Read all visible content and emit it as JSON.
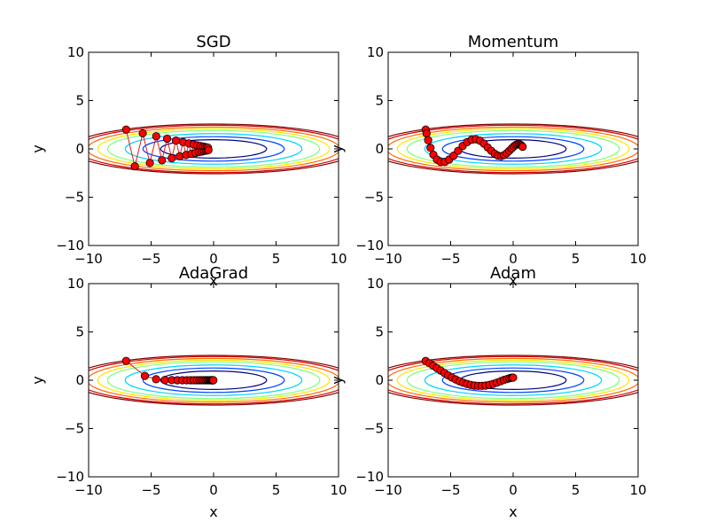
{
  "colors": {
    "path_line": "#e41a1c",
    "marker_fill": "#ff0000",
    "marker_edge": "#000000",
    "contour_levels": [
      "#00007f",
      "#0045ff",
      "#00d4ff",
      "#7fff7f",
      "#ffe600",
      "#ff6a00",
      "#d40000",
      "#7f0000"
    ]
  },
  "chart_data": [
    {
      "type": "line",
      "title": "SGD",
      "xlabel": "x",
      "ylabel": "y",
      "xlim": [
        -10,
        10
      ],
      "ylim": [
        -10,
        10
      ],
      "xticks": [
        "−10",
        "−5",
        "0",
        "5",
        "10"
      ],
      "yticks": [
        "−10",
        "−5",
        "0",
        "5",
        "10"
      ],
      "grid": false,
      "contour": {
        "function": "x^2/20 + y^2",
        "center": [
          0,
          0
        ]
      },
      "series": [
        {
          "x": [
            -7.0,
            -6.3,
            -5.67,
            -5.1,
            -4.59,
            -4.13,
            -3.72,
            -3.35,
            -3.01,
            -2.71,
            -2.44,
            -2.2,
            -1.98,
            -1.78,
            -1.6,
            -1.44,
            -1.3,
            -1.17,
            -1.05,
            -0.94,
            -0.85,
            -0.77,
            -0.69,
            -0.62,
            -0.56,
            -0.5,
            -0.45,
            -0.41
          ],
          "y": [
            2.0,
            -1.8,
            1.62,
            -1.46,
            1.31,
            -1.18,
            1.06,
            -0.96,
            0.86,
            -0.77,
            0.7,
            -0.63,
            0.56,
            -0.51,
            0.46,
            -0.41,
            0.37,
            -0.33,
            0.3,
            -0.27,
            0.24,
            -0.22,
            0.2,
            -0.18,
            0.16,
            -0.14,
            0.13,
            -0.12
          ]
        }
      ]
    },
    {
      "type": "line",
      "title": "Momentum",
      "xlabel": "x",
      "ylabel": "y",
      "xlim": [
        -10,
        10
      ],
      "ylim": [
        -10,
        10
      ],
      "xticks": [
        "−10",
        "−5",
        "0",
        "5",
        "10"
      ],
      "yticks": [
        "−10",
        "−5",
        "0",
        "5",
        "10"
      ],
      "grid": false,
      "contour": {
        "function": "x^2/20 + y^2",
        "center": [
          0,
          0
        ]
      },
      "series": [
        {
          "x": [
            -7.0,
            -6.93,
            -6.8,
            -6.61,
            -6.38,
            -6.1,
            -5.8,
            -5.47,
            -5.12,
            -4.76,
            -4.4,
            -4.04,
            -3.68,
            -3.33,
            -2.99,
            -2.66,
            -2.34,
            -2.04,
            -1.75,
            -1.47,
            -1.21,
            -0.96,
            -0.73,
            -0.51,
            -0.31,
            -0.12,
            0.05,
            0.2,
            0.34,
            0.46,
            0.56,
            0.64,
            0.71,
            0.76
          ],
          "y": [
            2.0,
            1.6,
            0.9,
            0.1,
            -0.6,
            -1.1,
            -1.35,
            -1.35,
            -1.1,
            -0.7,
            -0.2,
            0.3,
            0.7,
            0.95,
            1.0,
            0.85,
            0.55,
            0.15,
            -0.2,
            -0.5,
            -0.7,
            -0.75,
            -0.65,
            -0.45,
            -0.2,
            0.05,
            0.25,
            0.4,
            0.48,
            0.5,
            0.45,
            0.38,
            0.3,
            0.22
          ]
        }
      ]
    },
    {
      "type": "line",
      "title": "AdaGrad",
      "xlabel": "x",
      "ylabel": "y",
      "xlim": [
        -10,
        10
      ],
      "ylim": [
        -10,
        10
      ],
      "xticks": [
        "−10",
        "−5",
        "0",
        "5",
        "10"
      ],
      "yticks": [
        "−10",
        "−5",
        "0",
        "5",
        "10"
      ],
      "grid": false,
      "contour": {
        "function": "x^2/20 + y^2",
        "center": [
          0,
          0
        ]
      },
      "series": [
        {
          "x": [
            -7.0,
            -5.5,
            -4.6,
            -3.9,
            -3.35,
            -2.9,
            -2.5,
            -2.15,
            -1.85,
            -1.58,
            -1.34,
            -1.13,
            -0.95,
            -0.79,
            -0.65,
            -0.53,
            -0.43,
            -0.34,
            -0.27,
            -0.21,
            -0.16,
            -0.12,
            -0.09,
            -0.07,
            -0.05,
            -0.04,
            -0.03,
            -0.02
          ],
          "y": [
            2.0,
            0.45,
            0.1,
            0.02,
            0.01,
            0.0,
            0.0,
            0.0,
            0.0,
            0.0,
            0.0,
            0.0,
            0.0,
            0.0,
            0.0,
            0.0,
            0.0,
            0.0,
            0.0,
            0.0,
            0.0,
            0.0,
            0.0,
            0.0,
            0.0,
            0.0,
            0.0,
            0.0
          ]
        }
      ]
    },
    {
      "type": "line",
      "title": "Adam",
      "xlabel": "x",
      "ylabel": "y",
      "xlim": [
        -10,
        10
      ],
      "ylim": [
        -10,
        10
      ],
      "xticks": [
        "−10",
        "−5",
        "0",
        "5",
        "10"
      ],
      "yticks": [
        "−10",
        "−5",
        "0",
        "5",
        "10"
      ],
      "grid": false,
      "contour": {
        "function": "x^2/20 + y^2",
        "center": [
          0,
          0
        ]
      },
      "series": [
        {
          "x": [
            -7.0,
            -6.7,
            -6.4,
            -6.1,
            -5.8,
            -5.5,
            -5.2,
            -4.9,
            -4.6,
            -4.3,
            -4.0,
            -3.7,
            -3.4,
            -3.1,
            -2.8,
            -2.5,
            -2.2,
            -1.9,
            -1.6,
            -1.3,
            -1.0,
            -0.75,
            -0.5,
            -0.3,
            -0.15,
            -0.05,
            0.0
          ],
          "y": [
            2.0,
            1.75,
            1.5,
            1.25,
            1.0,
            0.75,
            0.5,
            0.28,
            0.08,
            -0.1,
            -0.25,
            -0.38,
            -0.48,
            -0.55,
            -0.58,
            -0.58,
            -0.55,
            -0.48,
            -0.38,
            -0.25,
            -0.1,
            0.02,
            0.12,
            0.2,
            0.25,
            0.27,
            0.27
          ]
        }
      ]
    }
  ]
}
